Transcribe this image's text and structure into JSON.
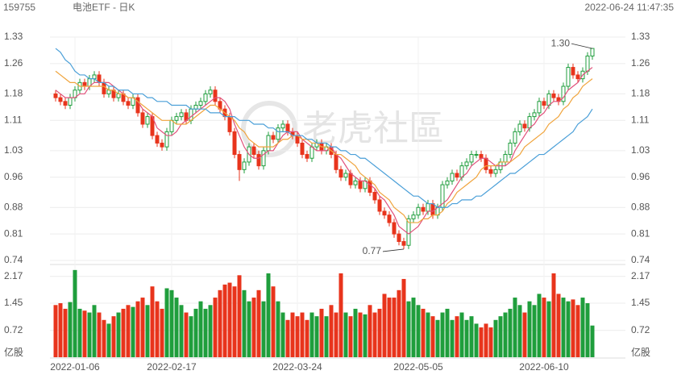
{
  "chart_data": {
    "type": "candlestick",
    "code": "159755",
    "title": "电池ETF - 日K",
    "timestamp": "2022-06-24 11:47:35",
    "watermark": "老虎社區",
    "volume_unit": "亿股",
    "up_color": "#1f9e3c",
    "down_color": "#e8341c",
    "categories": [
      null,
      null,
      null,
      null,
      "2022-01-06",
      null,
      null,
      null,
      null,
      null,
      null,
      null,
      null,
      null,
      null,
      null,
      null,
      null,
      null,
      null,
      null,
      null,
      null,
      null,
      "2022-02-17",
      null,
      null,
      null,
      null,
      null,
      null,
      null,
      null,
      null,
      null,
      null,
      null,
      null,
      null,
      null,
      null,
      null,
      null,
      null,
      null,
      null,
      null,
      null,
      null,
      null,
      "2022-03-24",
      null,
      null,
      null,
      null,
      null,
      null,
      null,
      null,
      null,
      null,
      null,
      null,
      null,
      null,
      null,
      null,
      null,
      null,
      null,
      null,
      null,
      null,
      null,
      null,
      "2022-05-05",
      null,
      null,
      null,
      null,
      null,
      null,
      null,
      null,
      null,
      null,
      null,
      null,
      null,
      null,
      null,
      null,
      null,
      null,
      null,
      null,
      null,
      null,
      null,
      null,
      null,
      "2022-06-10",
      null,
      null,
      null,
      null,
      null,
      null,
      null,
      null,
      null,
      null
    ],
    "open": [
      1.18,
      1.17,
      1.16,
      1.15,
      1.17,
      1.19,
      1.21,
      1.2,
      1.22,
      1.23,
      1.21,
      1.18,
      1.19,
      1.17,
      1.18,
      1.16,
      1.15,
      1.17,
      1.13,
      1.1,
      1.12,
      1.07,
      1.05,
      1.04,
      1.08,
      1.11,
      1.12,
      1.13,
      1.11,
      1.14,
      1.15,
      1.16,
      1.18,
      1.19,
      1.16,
      1.14,
      1.12,
      1.08,
      1.02,
      0.98,
      1.0,
      1.04,
      1.02,
      0.99,
      1.03,
      1.07,
      1.06,
      1.09,
      1.1,
      1.08,
      1.07,
      1.05,
      1.02,
      1.01,
      1.04,
      1.05,
      1.03,
      1.04,
      1.02,
      0.98,
      0.96,
      0.97,
      0.94,
      0.95,
      0.93,
      0.95,
      0.92,
      0.9,
      0.87,
      0.86,
      0.84,
      0.81,
      0.79,
      0.78,
      0.85,
      0.86,
      0.88,
      0.87,
      0.89,
      0.86,
      0.88,
      0.94,
      0.95,
      0.97,
      0.96,
      0.99,
      1.0,
      1.02,
      1.02,
      1.01,
      0.98,
      0.97,
      0.98,
      1.0,
      1.02,
      1.05,
      1.08,
      1.1,
      1.09,
      1.12,
      1.13,
      1.16,
      1.15,
      1.18,
      1.17,
      1.16,
      1.2,
      1.25,
      1.23,
      1.22,
      1.24,
      1.28
    ],
    "close": [
      1.17,
      1.16,
      1.15,
      1.17,
      1.19,
      1.21,
      1.2,
      1.22,
      1.23,
      1.21,
      1.18,
      1.19,
      1.17,
      1.18,
      1.16,
      1.15,
      1.17,
      1.13,
      1.1,
      1.12,
      1.07,
      1.05,
      1.04,
      1.08,
      1.11,
      1.12,
      1.13,
      1.11,
      1.14,
      1.15,
      1.16,
      1.18,
      1.19,
      1.16,
      1.14,
      1.12,
      1.08,
      1.02,
      0.98,
      1.0,
      1.04,
      1.02,
      0.99,
      1.03,
      1.07,
      1.06,
      1.09,
      1.1,
      1.08,
      1.07,
      1.05,
      1.02,
      1.01,
      1.04,
      1.05,
      1.03,
      1.04,
      1.02,
      0.98,
      0.96,
      0.97,
      0.94,
      0.95,
      0.93,
      0.95,
      0.92,
      0.9,
      0.87,
      0.86,
      0.84,
      0.81,
      0.79,
      0.78,
      0.85,
      0.86,
      0.88,
      0.87,
      0.89,
      0.86,
      0.88,
      0.94,
      0.95,
      0.97,
      0.96,
      0.99,
      1.0,
      1.02,
      1.02,
      1.01,
      0.98,
      0.97,
      0.98,
      1.0,
      1.02,
      1.05,
      1.08,
      1.1,
      1.09,
      1.12,
      1.13,
      1.16,
      1.15,
      1.18,
      1.17,
      1.16,
      1.2,
      1.25,
      1.23,
      1.22,
      1.24,
      1.28,
      1.3
    ],
    "high": [
      1.19,
      1.18,
      1.17,
      1.18,
      1.2,
      1.22,
      1.22,
      1.23,
      1.24,
      1.24,
      1.22,
      1.2,
      1.2,
      1.19,
      1.19,
      1.17,
      1.18,
      1.18,
      1.14,
      1.13,
      1.13,
      1.08,
      1.06,
      1.09,
      1.12,
      1.13,
      1.14,
      1.14,
      1.15,
      1.16,
      1.17,
      1.19,
      1.2,
      1.2,
      1.17,
      1.15,
      1.13,
      1.09,
      1.03,
      1.01,
      1.05,
      1.05,
      1.03,
      1.04,
      1.08,
      1.08,
      1.1,
      1.11,
      1.11,
      1.09,
      1.08,
      1.06,
      1.03,
      1.05,
      1.06,
      1.06,
      1.05,
      1.05,
      1.03,
      0.99,
      0.98,
      0.98,
      0.96,
      0.96,
      0.96,
      0.96,
      0.93,
      0.91,
      0.88,
      0.87,
      0.85,
      0.82,
      0.8,
      0.86,
      0.87,
      0.89,
      0.89,
      0.9,
      0.9,
      0.89,
      0.95,
      0.96,
      0.98,
      0.98,
      1.0,
      1.01,
      1.03,
      1.03,
      1.03,
      1.02,
      0.99,
      0.99,
      1.01,
      1.03,
      1.06,
      1.09,
      1.11,
      1.11,
      1.13,
      1.14,
      1.17,
      1.17,
      1.19,
      1.19,
      1.18,
      1.21,
      1.26,
      1.26,
      1.24,
      1.25,
      1.29,
      1.3
    ],
    "low": [
      1.16,
      1.15,
      1.14,
      1.14,
      1.16,
      1.18,
      1.19,
      1.19,
      1.21,
      1.2,
      1.17,
      1.17,
      1.16,
      1.16,
      1.15,
      1.14,
      1.14,
      1.12,
      1.09,
      1.09,
      1.06,
      1.04,
      1.03,
      1.03,
      1.07,
      1.1,
      1.11,
      1.1,
      1.1,
      1.13,
      1.14,
      1.15,
      1.17,
      1.15,
      1.13,
      1.11,
      1.07,
      1.01,
      0.95,
      0.97,
      0.99,
      1.01,
      0.98,
      0.98,
      1.02,
      1.05,
      1.05,
      1.08,
      1.07,
      1.06,
      1.04,
      1.01,
      1.0,
      1.0,
      1.03,
      1.02,
      1.02,
      1.01,
      0.97,
      0.95,
      0.95,
      0.93,
      0.93,
      0.92,
      0.92,
      0.91,
      0.89,
      0.86,
      0.85,
      0.83,
      0.8,
      0.78,
      0.77,
      0.77,
      0.84,
      0.85,
      0.86,
      0.86,
      0.85,
      0.85,
      0.87,
      0.93,
      0.94,
      0.95,
      0.95,
      0.98,
      0.99,
      1.01,
      1.0,
      0.97,
      0.96,
      0.96,
      0.97,
      0.99,
      1.01,
      1.04,
      1.07,
      1.08,
      1.08,
      1.11,
      1.12,
      1.14,
      1.14,
      1.16,
      1.15,
      1.15,
      1.19,
      1.22,
      1.21,
      1.21,
      1.23,
      1.27
    ],
    "volume": [
      1.4,
      1.45,
      1.3,
      1.48,
      2.34,
      1.3,
      1.25,
      1.2,
      1.4,
      1.2,
      1.0,
      0.9,
      1.1,
      1.2,
      1.3,
      1.4,
      1.35,
      1.5,
      1.6,
      1.4,
      1.9,
      1.5,
      1.3,
      1.85,
      1.8,
      1.6,
      1.4,
      1.2,
      1.1,
      1.3,
      1.5,
      1.3,
      1.4,
      1.6,
      1.8,
      1.95,
      2.0,
      1.9,
      2.2,
      1.8,
      1.5,
      1.6,
      1.8,
      1.5,
      2.25,
      1.9,
      1.5,
      1.2,
      1.0,
      1.2,
      1.1,
      1.2,
      1.0,
      1.2,
      1.1,
      1.3,
      1.1,
      1.4,
      1.2,
      2.25,
      1.2,
      1.1,
      1.3,
      1.2,
      1.15,
      1.4,
      1.2,
      1.3,
      1.7,
      1.6,
      1.6,
      1.8,
      2.1,
      1.5,
      1.6,
      1.4,
      1.3,
      1.2,
      1.1,
      1.0,
      1.2,
      1.3,
      1.0,
      1.1,
      1.2,
      1.0,
      1.1,
      0.9,
      0.8,
      0.9,
      0.8,
      1.0,
      1.1,
      1.2,
      1.3,
      1.6,
      1.4,
      1.2,
      1.5,
      1.4,
      1.7,
      1.6,
      1.5,
      2.25,
      1.7,
      1.6,
      1.5,
      1.55,
      1.4,
      1.6,
      1.45,
      0.85
    ],
    "lines": [
      {
        "color": "#e0507a",
        "values": [
          1.19,
          1.18,
          1.17,
          1.17,
          1.17,
          1.18,
          1.18,
          1.2,
          1.21,
          1.21,
          1.21,
          1.21,
          1.2,
          1.19,
          1.18,
          1.17,
          1.17,
          1.16,
          1.14,
          1.13,
          1.12,
          1.09,
          1.08,
          1.07,
          1.07,
          1.08,
          1.1,
          1.11,
          1.12,
          1.13,
          1.14,
          1.15,
          1.16,
          1.17,
          1.17,
          1.16,
          1.14,
          1.1,
          1.07,
          1.04,
          1.02,
          1.01,
          1.01,
          1.02,
          1.03,
          1.03,
          1.05,
          1.07,
          1.08,
          1.08,
          1.08,
          1.06,
          1.05,
          1.04,
          1.03,
          1.03,
          1.03,
          1.04,
          1.02,
          1.01,
          0.99,
          0.97,
          0.96,
          0.95,
          0.95,
          0.94,
          0.93,
          0.91,
          0.9,
          0.88,
          0.86,
          0.83,
          0.82,
          0.81,
          0.82,
          0.83,
          0.85,
          0.87,
          0.87,
          0.88,
          0.89,
          0.9,
          0.92,
          0.94,
          0.96,
          0.97,
          0.99,
          1.0,
          1.01,
          1.01,
          1.0,
          0.99,
          0.99,
          0.99,
          1.0,
          1.03,
          1.05,
          1.07,
          1.09,
          1.1,
          1.12,
          1.13,
          1.15,
          1.16,
          1.16,
          1.17,
          1.19,
          1.2,
          1.21,
          1.23,
          1.24,
          1.25
        ]
      },
      {
        "color": "#f0a43c",
        "values": [
          1.24,
          1.23,
          1.22,
          1.21,
          1.21,
          1.2,
          1.2,
          1.2,
          1.2,
          1.2,
          1.2,
          1.19,
          1.19,
          1.18,
          1.18,
          1.17,
          1.17,
          1.16,
          1.15,
          1.14,
          1.13,
          1.12,
          1.11,
          1.11,
          1.11,
          1.1,
          1.1,
          1.1,
          1.11,
          1.12,
          1.13,
          1.14,
          1.15,
          1.15,
          1.14,
          1.13,
          1.12,
          1.11,
          1.09,
          1.08,
          1.06,
          1.05,
          1.04,
          1.04,
          1.04,
          1.04,
          1.05,
          1.06,
          1.06,
          1.07,
          1.07,
          1.06,
          1.06,
          1.05,
          1.05,
          1.04,
          1.04,
          1.03,
          1.02,
          1.02,
          1.01,
          1.0,
          0.99,
          0.97,
          0.96,
          0.95,
          0.94,
          0.92,
          0.91,
          0.9,
          0.88,
          0.87,
          0.86,
          0.84,
          0.84,
          0.84,
          0.85,
          0.85,
          0.86,
          0.86,
          0.87,
          0.89,
          0.9,
          0.92,
          0.93,
          0.94,
          0.95,
          0.96,
          0.98,
          0.99,
          0.99,
          0.99,
          1.0,
          1.0,
          1.0,
          1.01,
          1.02,
          1.04,
          1.05,
          1.06,
          1.07,
          1.08,
          1.1,
          1.11,
          1.12,
          1.14,
          1.15,
          1.17,
          1.18,
          1.2,
          1.21,
          1.22
        ]
      },
      {
        "color": "#4a9fd8",
        "values": [
          1.3,
          1.29,
          1.27,
          1.26,
          1.24,
          1.23,
          1.23,
          1.22,
          1.22,
          1.21,
          1.21,
          1.2,
          1.2,
          1.19,
          1.19,
          1.19,
          1.18,
          1.18,
          1.18,
          1.17,
          1.17,
          1.16,
          1.16,
          1.16,
          1.15,
          1.15,
          1.15,
          1.15,
          1.14,
          1.14,
          1.14,
          1.14,
          1.13,
          1.13,
          1.13,
          1.12,
          1.12,
          1.12,
          1.11,
          1.11,
          1.11,
          1.1,
          1.1,
          1.1,
          1.09,
          1.09,
          1.08,
          1.08,
          1.08,
          1.07,
          1.07,
          1.07,
          1.06,
          1.06,
          1.05,
          1.05,
          1.05,
          1.04,
          1.04,
          1.03,
          1.03,
          1.02,
          1.02,
          1.01,
          1.01,
          1.0,
          0.99,
          0.98,
          0.97,
          0.96,
          0.95,
          0.94,
          0.93,
          0.92,
          0.91,
          0.91,
          0.9,
          0.89,
          0.89,
          0.88,
          0.88,
          0.88,
          0.89,
          0.89,
          0.9,
          0.9,
          0.9,
          0.91,
          0.91,
          0.92,
          0.93,
          0.94,
          0.95,
          0.96,
          0.97,
          0.97,
          0.98,
          0.99,
          1.0,
          1.01,
          1.02,
          1.02,
          1.03,
          1.04,
          1.05,
          1.06,
          1.07,
          1.08,
          1.1,
          1.11,
          1.12,
          1.14
        ]
      }
    ],
    "annotations": [
      {
        "value": 1.3,
        "label": "1.30"
      },
      {
        "value": 0.77,
        "label": "0.77"
      }
    ],
    "ylim": [
      0.74,
      1.33
    ],
    "yticks": [
      0.74,
      0.81,
      0.88,
      0.96,
      1.03,
      1.11,
      1.18,
      1.26,
      1.33
    ],
    "vol_ylim": [
      0,
      2.38
    ],
    "vol_yticks": [
      0.72,
      1.45,
      2.17
    ],
    "grid": true
  }
}
